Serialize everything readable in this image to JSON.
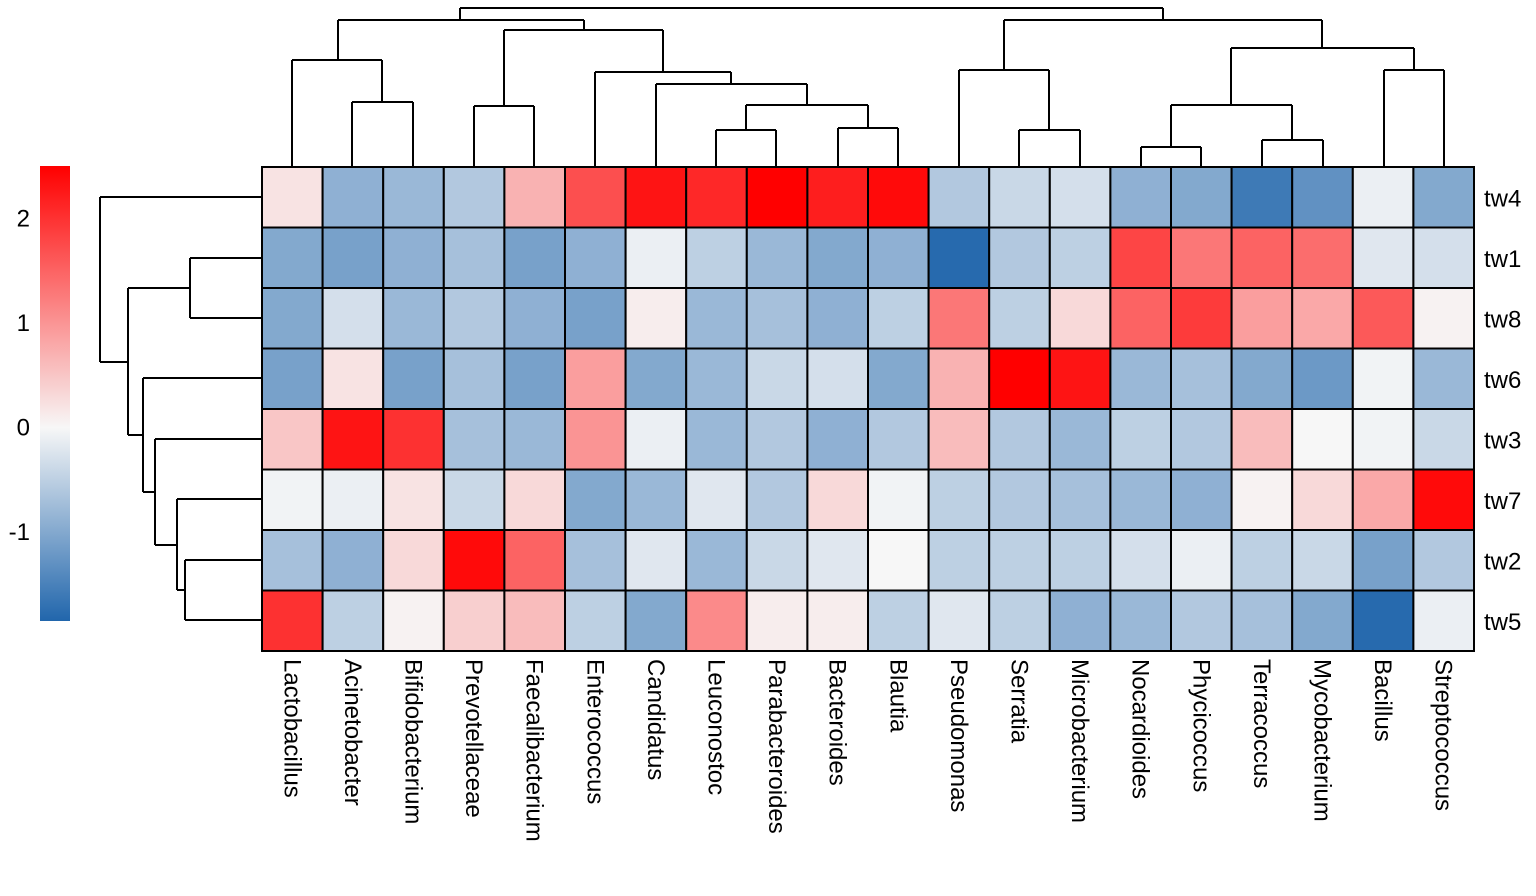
{
  "chart_data": {
    "type": "heatmap",
    "title": "",
    "columns": [
      "Lactobacillus",
      "Acinetobacter",
      "Bifidobacterium",
      "Prevotellaceae",
      "Faecalibacterium",
      "Enterococcus",
      "Candidatus",
      "Leuconostoc",
      "Parabacteroides",
      "Bacteroides",
      "Blautia",
      "Pseudomonas",
      "Serratia",
      "Microbacterium",
      "Nocardioides",
      "Phycicoccus",
      "Terracoccus",
      "Mycobacterium",
      "Bacillus",
      "Streptococcus"
    ],
    "rows": [
      "tw4",
      "tw1",
      "tw8",
      "tw6",
      "tw3",
      "tw7",
      "tw2",
      "tw5"
    ],
    "values": [
      [
        0.2,
        -0.9,
        -0.8,
        -0.6,
        0.7,
        1.7,
        2.3,
        2.1,
        2.5,
        2.2,
        2.4,
        -0.6,
        -0.4,
        -0.3,
        -0.9,
        -1.0,
        -1.6,
        -1.3,
        -0.1,
        -1.0
      ],
      [
        -1.0,
        -1.1,
        -0.9,
        -0.7,
        -1.1,
        -0.9,
        -0.1,
        -0.5,
        -0.8,
        -1.0,
        -0.9,
        -1.8,
        -0.6,
        -0.5,
        1.8,
        1.3,
        1.5,
        1.4,
        -0.2,
        -0.3
      ],
      [
        -1.0,
        -0.3,
        -0.8,
        -0.6,
        -0.9,
        -1.1,
        0.1,
        -0.8,
        -0.7,
        -0.9,
        -0.5,
        1.3,
        -0.5,
        0.3,
        1.5,
        1.9,
        0.9,
        0.8,
        1.6,
        0.05
      ],
      [
        -1.1,
        0.2,
        -1.1,
        -0.7,
        -1.1,
        0.9,
        -1.0,
        -0.8,
        -0.4,
        -0.3,
        -1.0,
        0.7,
        2.5,
        2.3,
        -0.8,
        -0.7,
        -1.0,
        -1.2,
        -0.05,
        -0.8
      ],
      [
        0.5,
        2.3,
        2.0,
        -0.7,
        -0.8,
        1.0,
        -0.1,
        -0.8,
        -0.6,
        -0.9,
        -0.6,
        0.6,
        -0.6,
        -0.8,
        -0.5,
        -0.6,
        0.6,
        0.0,
        -0.05,
        -0.4
      ],
      [
        -0.05,
        -0.1,
        0.2,
        -0.4,
        0.3,
        -1.0,
        -0.8,
        -0.2,
        -0.6,
        0.3,
        -0.05,
        -0.5,
        -0.6,
        -0.7,
        -0.8,
        -0.9,
        0.05,
        0.3,
        0.8,
        2.4
      ],
      [
        -0.7,
        -0.9,
        0.3,
        2.4,
        1.5,
        -0.7,
        -0.2,
        -0.8,
        -0.4,
        -0.2,
        0.0,
        -0.5,
        -0.5,
        -0.5,
        -0.3,
        -0.1,
        -0.5,
        -0.4,
        -1.1,
        -0.6
      ],
      [
        2.0,
        -0.5,
        0.05,
        0.4,
        0.6,
        -0.5,
        -1.0,
        1.1,
        0.1,
        0.1,
        -0.5,
        -0.2,
        -0.5,
        -0.9,
        -0.8,
        -0.6,
        -0.7,
        -1.0,
        -1.8,
        -0.1
      ]
    ],
    "legend": {
      "ticks": [
        2,
        1,
        0,
        -1
      ],
      "min": -1.85,
      "max": 2.5,
      "low_color": "#2166ac",
      "mid_color": "#f7f7f7",
      "high_color": "#ff0000",
      "placement": "top-left"
    },
    "row_dendrogram_order": [
      "tw4",
      "tw1",
      "tw8",
      "tw6",
      "tw3",
      "tw7",
      "tw2",
      "tw5"
    ],
    "column_dendrogram_order": [
      "Lactobacillus",
      "Acinetobacter",
      "Bifidobacterium",
      "Prevotellaceae",
      "Faecalibacterium",
      "Enterococcus",
      "Candidatus",
      "Leuconostoc",
      "Parabacteroides",
      "Bacteroides",
      "Blautia",
      "Pseudomonas",
      "Serratia",
      "Microbacterium",
      "Nocardioides",
      "Phycicoccus",
      "Terracoccus",
      "Mycobacterium",
      "Bacillus",
      "Streptococcus"
    ]
  }
}
